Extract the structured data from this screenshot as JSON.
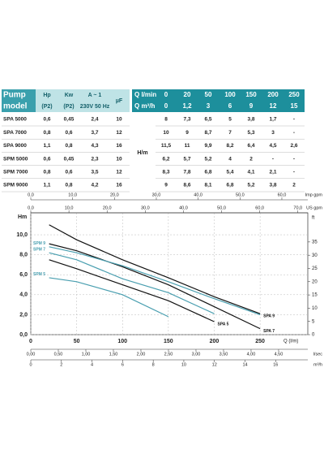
{
  "table": {
    "model_header": [
      "Pump",
      "model"
    ],
    "columns": [
      [
        "Hp",
        "(P2)"
      ],
      [
        "Kw",
        "(P2)"
      ],
      [
        "A ~ 1",
        "230V 50 Hz"
      ],
      [
        "µF"
      ]
    ],
    "flow_label_lmin": "Q l/min",
    "flow_lmin": [
      "0",
      "20",
      "50",
      "100",
      "150",
      "200",
      "250"
    ],
    "flow_label_m3h": "Q m³/h",
    "flow_m3h": [
      "0",
      "1,2",
      "3",
      "6",
      "9",
      "12",
      "15"
    ],
    "head_label": "H/m",
    "rows": [
      {
        "model": "SPA 5000",
        "cells": [
          "0,6",
          "0,45",
          "2,4",
          "10"
        ],
        "heads": [
          "8",
          "7,3",
          "6,5",
          "5",
          "3,8",
          "1,7",
          "-"
        ]
      },
      {
        "model": "SPA 7000",
        "cells": [
          "0,8",
          "0,6",
          "3,7",
          "12"
        ],
        "heads": [
          "10",
          "9",
          "8,7",
          "7",
          "5,3",
          "3",
          "-"
        ]
      },
      {
        "model": "SPA 9000",
        "cells": [
          "1,1",
          "0,8",
          "4,3",
          "16"
        ],
        "heads": [
          "11,5",
          "11",
          "9,9",
          "8,2",
          "6,4",
          "4,5",
          "2,6"
        ]
      },
      {
        "model": "SPM 5000",
        "cells": [
          "0,6",
          "0,45",
          "2,3",
          "10"
        ],
        "heads": [
          "6,2",
          "5,7",
          "5,2",
          "4",
          "2",
          "-",
          "-"
        ]
      },
      {
        "model": "SPM 7000",
        "cells": [
          "0,8",
          "0,6",
          "3,5",
          "12"
        ],
        "heads": [
          "8,3",
          "7,8",
          "6,8",
          "5,4",
          "4,1",
          "2,1",
          "-"
        ]
      },
      {
        "model": "SPM 9000",
        "cells": [
          "1,1",
          "0,8",
          "4,2",
          "16"
        ],
        "heads": [
          "9",
          "8,6",
          "8,1",
          "6,8",
          "5,2",
          "3,8",
          "2"
        ]
      }
    ]
  },
  "chart_data": {
    "type": "line",
    "xlabel": "Q (l/m)",
    "x": [
      20,
      50,
      100,
      150,
      200,
      250
    ],
    "xlim": [
      0,
      302
    ],
    "xticks": [
      0,
      50,
      100,
      150,
      200,
      250
    ],
    "ylabel": "Hm",
    "ylim": [
      0,
      12.2
    ],
    "yticks": [
      {
        "value": 0,
        "label": "0,0"
      },
      {
        "value": 2,
        "label": "2,0"
      },
      {
        "value": 4,
        "label": "4,0"
      },
      {
        "value": 6,
        "label": "6,0"
      },
      {
        "value": 8,
        "label": "8,0"
      },
      {
        "value": 10,
        "label": "10,0"
      }
    ],
    "y2label": "ft",
    "y2lim": [
      0,
      46
    ],
    "y2ticks": [
      0,
      5,
      10,
      15,
      20,
      25,
      30,
      35
    ],
    "grid": true,
    "extra_x_axes": [
      {
        "label": "Imp gpm",
        "side": "top",
        "lim": [
          0,
          66.2
        ],
        "ticks": [
          {
            "value": 0,
            "label": "0,0"
          },
          {
            "value": 10,
            "label": "10,0"
          },
          {
            "value": 20,
            "label": "20,0"
          },
          {
            "value": 30,
            "label": "30,0"
          },
          {
            "value": 40,
            "label": "40,0"
          },
          {
            "value": 50,
            "label": "50,0"
          },
          {
            "value": 60,
            "label": "60,0"
          }
        ]
      },
      {
        "label": "US gpm",
        "side": "top",
        "lim": [
          0,
          72.6
        ],
        "ticks": [
          {
            "value": 0,
            "label": "0,0"
          },
          {
            "value": 10,
            "label": "10,0"
          },
          {
            "value": 20,
            "label": "20,0"
          },
          {
            "value": 30,
            "label": "30,0"
          },
          {
            "value": 40,
            "label": "40,0"
          },
          {
            "value": 50,
            "label": "50,0"
          },
          {
            "value": 60,
            "label": "60,0"
          },
          {
            "value": 70,
            "label": "70,0"
          }
        ]
      },
      {
        "label": "l/sec",
        "side": "bottom",
        "lim": [
          0,
          5.03
        ],
        "ticks": [
          {
            "value": 0,
            "label": "0,00"
          },
          {
            "value": 0.5,
            "label": "0,50"
          },
          {
            "value": 1,
            "label": "1,00"
          },
          {
            "value": 1.5,
            "label": "1,50"
          },
          {
            "value": 2,
            "label": "2,00"
          },
          {
            "value": 2.5,
            "label": "2,50"
          },
          {
            "value": 3,
            "label": "3,00"
          },
          {
            "value": 3.5,
            "label": "3,50"
          },
          {
            "value": 4,
            "label": "4,00"
          },
          {
            "value": 4.5,
            "label": "4,50"
          }
        ]
      },
      {
        "label": "m³/h",
        "side": "bottom",
        "lim": [
          0,
          18.1
        ],
        "ticks": [
          0,
          2,
          4,
          6,
          8,
          10,
          12,
          14,
          16
        ]
      }
    ],
    "series": [
      {
        "name": "SPA 9",
        "color": "#111111",
        "label_at": "end",
        "values": [
          11.0,
          9.5,
          7.5,
          5.7,
          3.8,
          2.1
        ]
      },
      {
        "name": "SPA 7",
        "color": "#111111",
        "label_at": "end",
        "values": [
          9.1,
          8.4,
          6.8,
          5.0,
          2.8,
          0.6
        ]
      },
      {
        "name": "SPA 5",
        "color": "#111111",
        "label_at": "end",
        "values": [
          7.5,
          6.6,
          5.0,
          3.4,
          1.3,
          null
        ]
      },
      {
        "name": "SPM 9",
        "color": "#4a9fb0",
        "label_at": "start",
        "values": [
          8.8,
          8.2,
          6.9,
          5.3,
          3.6,
          2.0
        ]
      },
      {
        "name": "SPM 7",
        "color": "#4a9fb0",
        "label_at": "start",
        "values": [
          8.2,
          7.5,
          5.6,
          4.2,
          2.1,
          null
        ]
      },
      {
        "name": "SPM 5",
        "color": "#4a9fb0",
        "label_at": "start",
        "values": [
          5.7,
          5.3,
          4.0,
          1.8,
          null,
          null
        ]
      }
    ]
  }
}
